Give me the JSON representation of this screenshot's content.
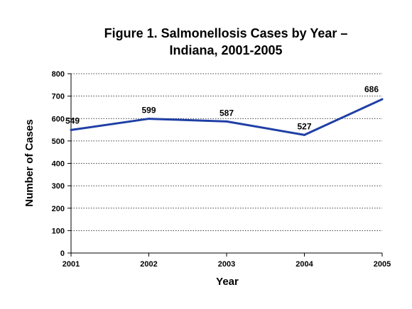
{
  "chart_data": {
    "type": "line",
    "title": "Figure 1.  Salmonellosis Cases by Year –",
    "subtitle": "Indiana, 2001-2005",
    "xlabel": "Year",
    "ylabel": "Number of Cases",
    "categories": [
      "2001",
      "2002",
      "2003",
      "2004",
      "2005"
    ],
    "series": [
      {
        "values": [
          549,
          599,
          587,
          527,
          686
        ],
        "color": "#1f3fa6"
      }
    ],
    "data_labels": [
      "549",
      "599",
      "587",
      "527",
      "686"
    ],
    "ylim": [
      0,
      800
    ],
    "yticks": [
      0,
      100,
      200,
      300,
      400,
      500,
      600,
      700,
      800
    ],
    "ytick_labels": [
      "0",
      "100",
      "200",
      "300",
      "400",
      "500",
      "600",
      "700",
      "800"
    ],
    "grid": "horizontal-dotted",
    "legend": "none"
  }
}
